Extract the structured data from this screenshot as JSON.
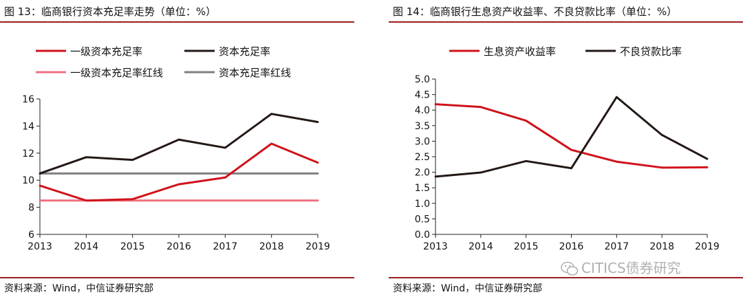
{
  "panels": [
    {
      "title": "图 13：临商银行资本充足率走势（单位：%）",
      "source": "资料来源：Wind，中信证券研究部"
    },
    {
      "title": "图 14：临商银行生息资产收益率、不良贷款比率（单位：%）",
      "source": "资料来源：Wind，中信证券研究部"
    }
  ],
  "watermark": "CITICS债券研究",
  "chart_data": [
    {
      "type": "line",
      "title": "图 13：临商银行资本充足率走势（单位：%）",
      "x": [
        "2013",
        "2014",
        "2015",
        "2016",
        "2017",
        "2018",
        "2019"
      ],
      "ylim": [
        6,
        16
      ],
      "yticks": [
        "6",
        "8",
        "10",
        "12",
        "14",
        "16"
      ],
      "legend": "top",
      "grid": false,
      "series": [
        {
          "name": "一级资本充足率",
          "color": "#d0121b",
          "values": [
            9.6,
            8.5,
            8.6,
            9.7,
            10.2,
            12.7,
            11.3
          ]
        },
        {
          "name": "资本充足率",
          "color": "#231815",
          "values": [
            10.5,
            11.7,
            11.5,
            13.0,
            12.4,
            14.9,
            14.3
          ]
        },
        {
          "name": "一级资本充足率红线",
          "color": "#f07080",
          "values": [
            8.5,
            8.5,
            8.5,
            8.5,
            8.5,
            8.5,
            8.5
          ]
        },
        {
          "name": "资本充足率红线",
          "color": "#7f7f7f",
          "values": [
            10.5,
            10.5,
            10.5,
            10.5,
            10.5,
            10.5,
            10.5
          ]
        }
      ]
    },
    {
      "type": "line",
      "title": "图 14：临商银行生息资产收益率、不良贷款比率（单位：%）",
      "x": [
        "2013",
        "2014",
        "2015",
        "2016",
        "2017",
        "2018",
        "2019"
      ],
      "ylim": [
        0,
        5
      ],
      "yticks": [
        "0.0",
        "0.5",
        "1.0",
        "1.5",
        "2.0",
        "2.5",
        "3.0",
        "3.5",
        "4.0",
        "4.5",
        "5.0"
      ],
      "legend": "top",
      "grid": false,
      "series": [
        {
          "name": "生息资产收益率",
          "color": "#d0121b",
          "values": [
            4.19,
            4.1,
            3.66,
            2.72,
            2.34,
            2.15,
            2.16
          ]
        },
        {
          "name": "不良贷款比率",
          "color": "#231815",
          "values": [
            1.86,
            1.99,
            2.36,
            2.13,
            4.42,
            3.2,
            2.43
          ]
        }
      ]
    }
  ]
}
